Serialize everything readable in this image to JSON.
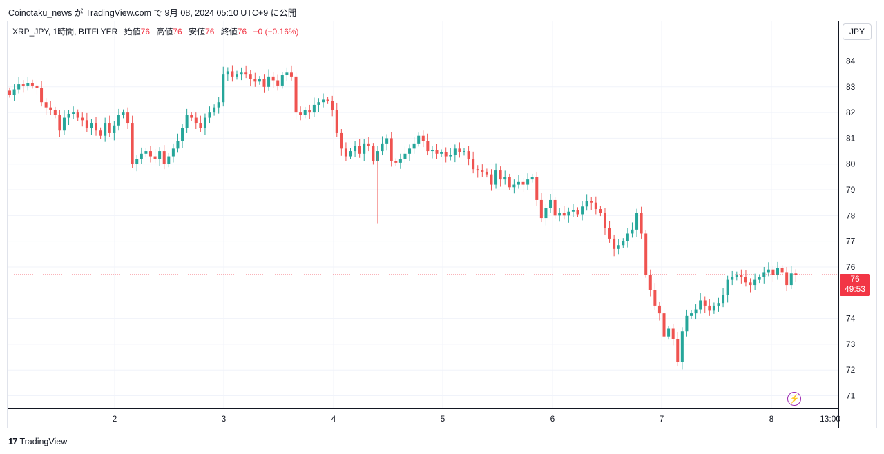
{
  "header": {
    "published": "Coinotaku_news が TradingView.com で 9月 08, 2024 05:10 UTC+9 に公開"
  },
  "legend": {
    "symbol": "XRP_JPY, 1時間, BITFLYER",
    "open_label": "始値",
    "open": "76",
    "high_label": "高値",
    "high": "76",
    "low_label": "安値",
    "low": "76",
    "close_label": "終値",
    "close": "76",
    "change": "−0 (−0.16%)"
  },
  "currency_button": "JPY",
  "price_tag": {
    "price": "76",
    "countdown": "49:53"
  },
  "branding": {
    "logo": "17",
    "name": "TradingView"
  },
  "colors": {
    "up": "#26a69a",
    "down": "#ef5350",
    "grid": "#f0f3fa",
    "last_price_line": "#f23645",
    "bolt": "#9c27b0"
  },
  "icons": {
    "bolt": "lightning-bolt-icon"
  },
  "chart_data": {
    "type": "candlestick",
    "symbol": "XRP_JPY",
    "interval": "1時間",
    "exchange": "BITFLYER",
    "y_ticks": [
      84,
      83,
      82,
      81,
      80,
      79,
      78,
      77,
      76,
      74,
      73,
      72,
      71
    ],
    "ylim": [
      70.5,
      85
    ],
    "x_ticks": [
      "2",
      "3",
      "4",
      "5",
      "6",
      "7",
      "8",
      "13:00"
    ],
    "last_price": 75.7,
    "grid": true,
    "closes": [
      82.7,
      82.9,
      83.1,
      83.05,
      83.15,
      83.05,
      82.95,
      82.4,
      82.2,
      82.1,
      81.9,
      81.3,
      81.8,
      81.95,
      82.0,
      81.8,
      81.7,
      81.4,
      81.6,
      81.3,
      81.1,
      81.6,
      81.2,
      81.5,
      81.9,
      82.0,
      81.6,
      80.0,
      80.2,
      80.4,
      80.5,
      80.3,
      80.2,
      80.5,
      80.0,
      80.3,
      80.6,
      80.9,
      81.4,
      81.9,
      81.8,
      81.6,
      81.4,
      81.8,
      82.0,
      82.2,
      82.4,
      83.5,
      83.6,
      83.4,
      83.5,
      83.55,
      83.5,
      83.3,
      83.2,
      83.3,
      83.0,
      83.4,
      83.25,
      83.05,
      83.45,
      83.55,
      83.4,
      82.0,
      81.9,
      82.1,
      82.0,
      82.3,
      82.4,
      82.5,
      82.45,
      82.1,
      81.2,
      80.6,
      80.3,
      80.5,
      80.7,
      80.4,
      80.8,
      80.7,
      80.1,
      80.5,
      80.8,
      81.0,
      80.1,
      80.05,
      80.2,
      80.4,
      80.6,
      80.8,
      81.1,
      80.9,
      80.5,
      80.55,
      80.4,
      80.45,
      80.3,
      80.35,
      80.6,
      80.45,
      80.5,
      80.2,
      79.8,
      79.75,
      79.7,
      79.6,
      79.2,
      79.75,
      79.4,
      79.5,
      79.1,
      79.2,
      79.3,
      79.2,
      79.4,
      79.5,
      78.6,
      77.9,
      78.3,
      78.6,
      78.0,
      78.1,
      78.0,
      78.15,
      78.2,
      78.05,
      78.35,
      78.55,
      78.5,
      78.25,
      78.1,
      77.5,
      77.1,
      76.7,
      76.85,
      77.0,
      77.3,
      77.45,
      78.1,
      77.3,
      75.7,
      75.1,
      74.5,
      74.2,
      73.3,
      73.6,
      73.2,
      72.3,
      73.5,
      74.1,
      74.2,
      74.35,
      74.7,
      74.5,
      74.3,
      74.5,
      74.6,
      74.9,
      75.5,
      75.6,
      75.7,
      75.6,
      75.4,
      75.3,
      75.5,
      75.6,
      75.8,
      75.9,
      75.7,
      75.95,
      75.8,
      75.3,
      75.75,
      75.7
    ],
    "x_range_hours": [
      0,
      202
    ],
    "start_offset_hours": 0
  }
}
